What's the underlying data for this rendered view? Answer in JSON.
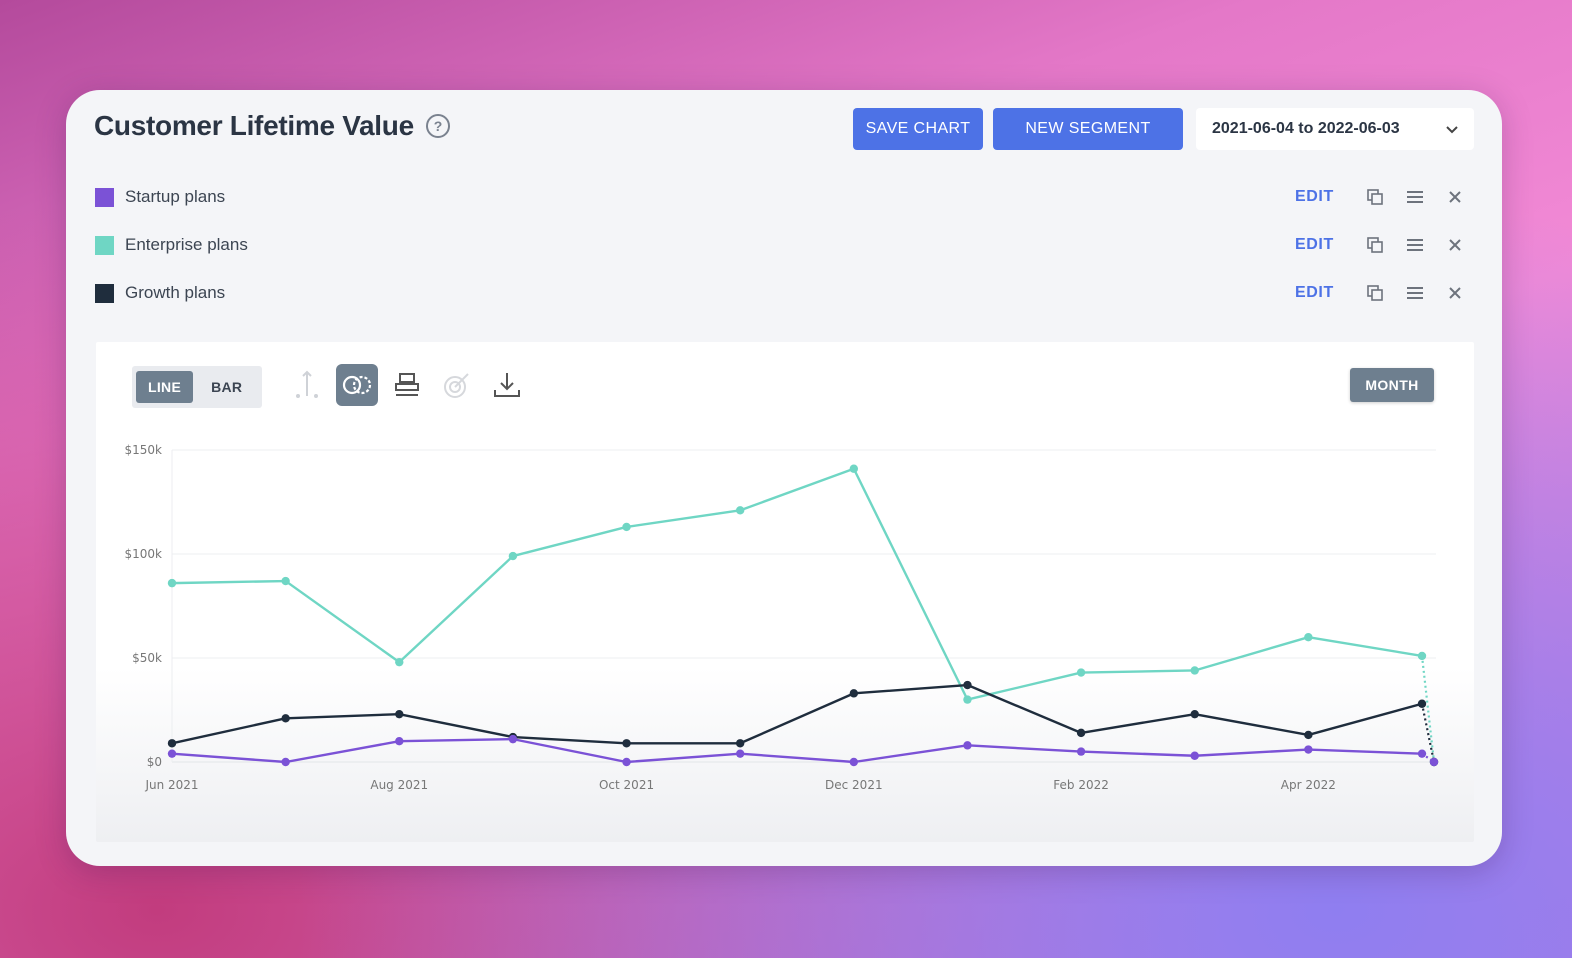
{
  "header": {
    "title": "Customer Lifetime Value",
    "help_icon": "?",
    "save_chart_label": "SAVE CHART",
    "new_segment_label": "NEW SEGMENT",
    "date_range": "2021-06-04 to 2022-06-03"
  },
  "segments": [
    {
      "label": "Startup plans",
      "color": "#7b52d6",
      "edit_label": "EDIT"
    },
    {
      "label": "Enterprise plans",
      "color": "#6fd6c4",
      "edit_label": "EDIT"
    },
    {
      "label": "Growth plans",
      "color": "#1f2d3d",
      "edit_label": "EDIT"
    }
  ],
  "toolbar": {
    "line_label": "LINE",
    "bar_label": "BAR",
    "month_label": "MONTH",
    "tools": [
      "axis-icon",
      "compare-icon",
      "stack-icon",
      "target-icon",
      "download-icon"
    ]
  },
  "chart_data": {
    "type": "line",
    "x": [
      "Jun 2021",
      "Jul 2021",
      "Aug 2021",
      "Sep 2021",
      "Oct 2021",
      "Nov 2021",
      "Dec 2021",
      "Jan 2022",
      "Feb 2022",
      "Mar 2022",
      "Apr 2022",
      "May 2022",
      "Jun 2022"
    ],
    "x_tick_labels": [
      "Jun 2021",
      "Aug 2021",
      "Oct 2021",
      "Dec 2021",
      "Feb 2022",
      "Apr 2022"
    ],
    "y_tick_labels": [
      "$0",
      "$50k",
      "$100k",
      "$150k"
    ],
    "y_ticks": [
      0,
      50000,
      100000,
      150000
    ],
    "ylim": [
      0,
      150000
    ],
    "series": [
      {
        "name": "Enterprise plans",
        "color": "#6fd6c4",
        "values": [
          86000,
          87000,
          48000,
          99000,
          113000,
          121000,
          141000,
          30000,
          43000,
          44000,
          60000,
          51000,
          0
        ]
      },
      {
        "name": "Growth plans",
        "color": "#1f2d3d",
        "values": [
          9000,
          21000,
          23000,
          12000,
          9000,
          9000,
          33000,
          37000,
          14000,
          23000,
          13000,
          28000,
          0
        ]
      },
      {
        "name": "Startup plans",
        "color": "#7b52d6",
        "values": [
          4000,
          0,
          10000,
          11000,
          0,
          4000,
          0,
          8000,
          5000,
          3000,
          6000,
          4000,
          0
        ]
      }
    ],
    "partial_last_point": true,
    "grid": true
  }
}
